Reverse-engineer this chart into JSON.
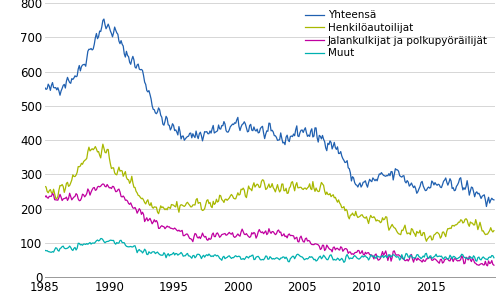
{
  "title": "",
  "xlabel": "",
  "ylabel": "",
  "xlim": [
    1985.0,
    2020.0
  ],
  "ylim": [
    0,
    800
  ],
  "yticks": [
    0,
    100,
    200,
    300,
    400,
    500,
    600,
    700,
    800
  ],
  "xticks": [
    1985,
    1990,
    1995,
    2000,
    2005,
    2010,
    2015
  ],
  "legend_labels": [
    "Yhteensä",
    "Henkilöautoilijat",
    "Jalankulkijat ja polkupyöräilijät",
    "Muut"
  ],
  "line_colors": [
    "#2060b0",
    "#a8b800",
    "#c000a0",
    "#00b0b0"
  ],
  "line_width": 0.9,
  "background_color": "#ffffff",
  "grid_color": "#d0d0d0",
  "legend_fontsize": 7.5,
  "tick_fontsize": 8.5
}
